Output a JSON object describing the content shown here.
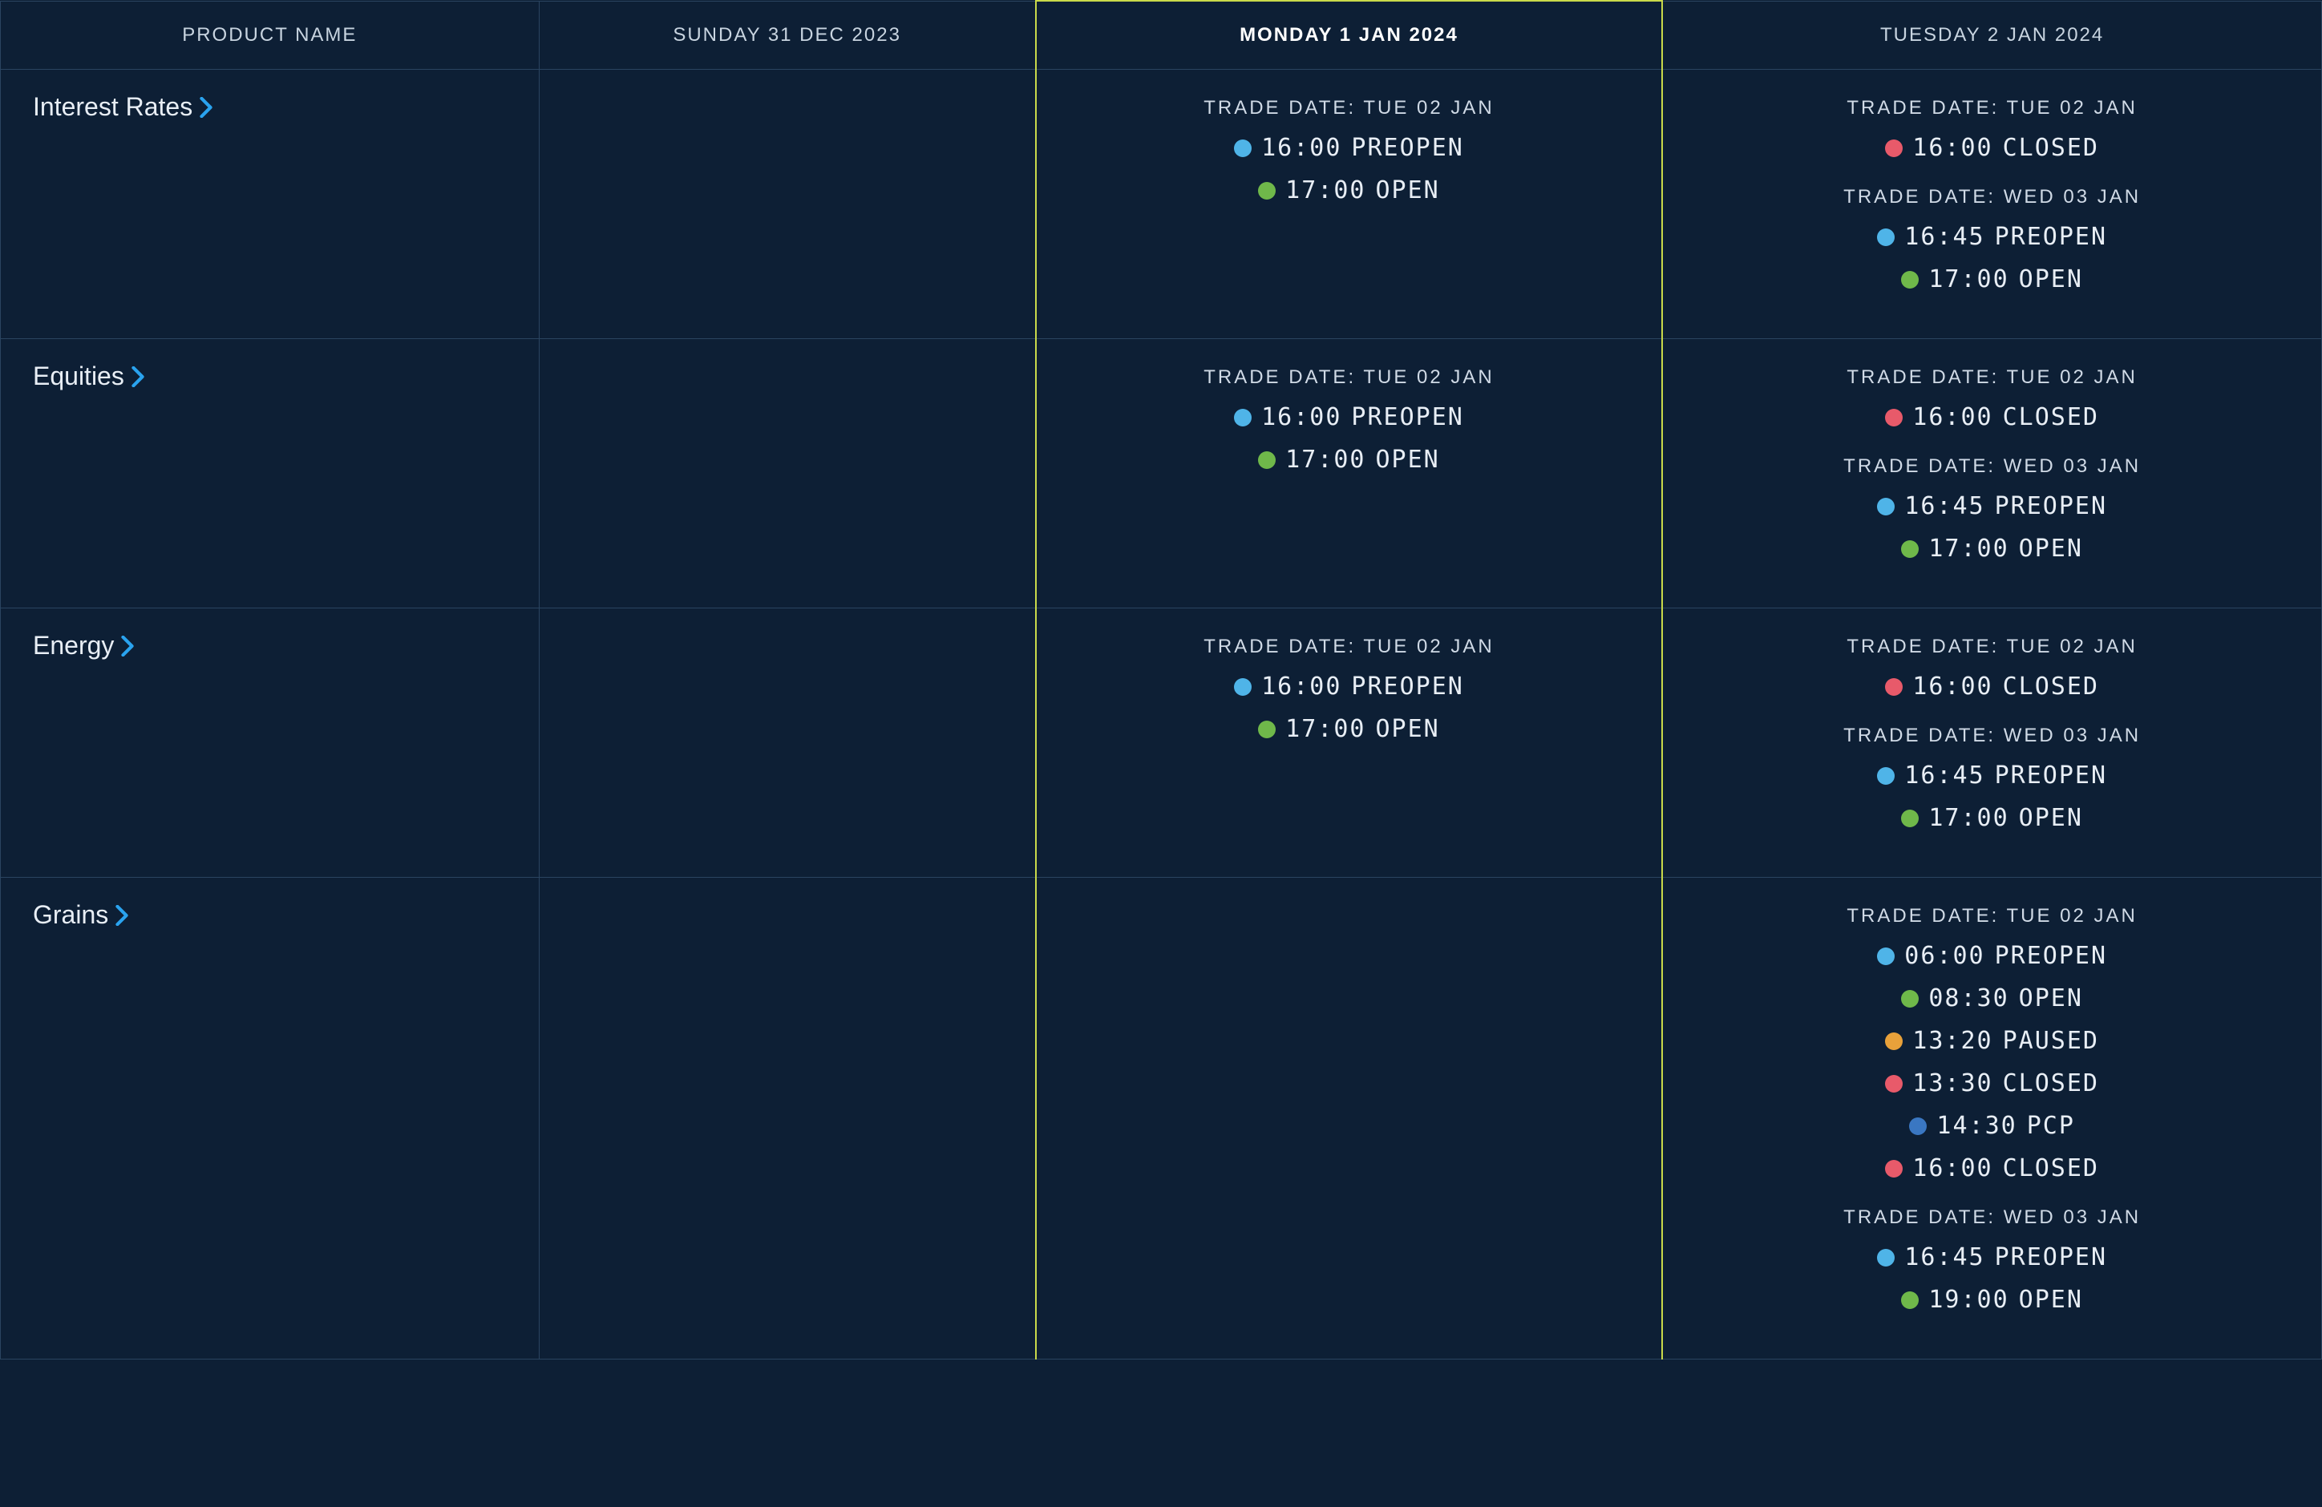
{
  "colors": {
    "background": "#0d1f35",
    "border": "#2a4460",
    "highlight_border": "#c9d94a",
    "text": "#e8eef5",
    "text_muted": "#c8d4e0",
    "chevron": "#2aa3ef",
    "status": {
      "PREOPEN": "#4fb4e8",
      "OPEN": "#6fb84a",
      "CLOSED": "#e85a6a",
      "PAUSED": "#e8a13a",
      "PCP": "#3a77c2"
    }
  },
  "columns": [
    {
      "key": "product",
      "label": "PRODUCT NAME",
      "highlight": false
    },
    {
      "key": "sun",
      "label": "SUNDAY 31 DEC 2023",
      "highlight": false
    },
    {
      "key": "mon",
      "label": "MONDAY 1 JAN 2024",
      "highlight": true
    },
    {
      "key": "tue",
      "label": "TUESDAY 2 JAN 2024",
      "highlight": false
    }
  ],
  "rows": [
    {
      "product": "Interest Rates",
      "cells": {
        "sun": [],
        "mon": [
          {
            "trade_date": "TRADE DATE: TUE 02 JAN",
            "lines": [
              {
                "time": "16:00",
                "status": "PREOPEN"
              },
              {
                "time": "17:00",
                "status": "OPEN"
              }
            ]
          }
        ],
        "tue": [
          {
            "trade_date": "TRADE DATE: TUE 02 JAN",
            "lines": [
              {
                "time": "16:00",
                "status": "CLOSED"
              }
            ]
          },
          {
            "trade_date": "TRADE DATE: WED 03 JAN",
            "lines": [
              {
                "time": "16:45",
                "status": "PREOPEN"
              },
              {
                "time": "17:00",
                "status": "OPEN"
              }
            ]
          }
        ]
      }
    },
    {
      "product": "Equities",
      "cells": {
        "sun": [],
        "mon": [
          {
            "trade_date": "TRADE DATE: TUE 02 JAN",
            "lines": [
              {
                "time": "16:00",
                "status": "PREOPEN"
              },
              {
                "time": "17:00",
                "status": "OPEN"
              }
            ]
          }
        ],
        "tue": [
          {
            "trade_date": "TRADE DATE: TUE 02 JAN",
            "lines": [
              {
                "time": "16:00",
                "status": "CLOSED"
              }
            ]
          },
          {
            "trade_date": "TRADE DATE: WED 03 JAN",
            "lines": [
              {
                "time": "16:45",
                "status": "PREOPEN"
              },
              {
                "time": "17:00",
                "status": "OPEN"
              }
            ]
          }
        ]
      }
    },
    {
      "product": "Energy",
      "cells": {
        "sun": [],
        "mon": [
          {
            "trade_date": "TRADE DATE: TUE 02 JAN",
            "lines": [
              {
                "time": "16:00",
                "status": "PREOPEN"
              },
              {
                "time": "17:00",
                "status": "OPEN"
              }
            ]
          }
        ],
        "tue": [
          {
            "trade_date": "TRADE DATE: TUE 02 JAN",
            "lines": [
              {
                "time": "16:00",
                "status": "CLOSED"
              }
            ]
          },
          {
            "trade_date": "TRADE DATE: WED 03 JAN",
            "lines": [
              {
                "time": "16:45",
                "status": "PREOPEN"
              },
              {
                "time": "17:00",
                "status": "OPEN"
              }
            ]
          }
        ]
      }
    },
    {
      "product": "Grains",
      "cells": {
        "sun": [],
        "mon": [],
        "tue": [
          {
            "trade_date": "TRADE DATE: TUE 02 JAN",
            "lines": [
              {
                "time": "06:00",
                "status": "PREOPEN"
              },
              {
                "time": "08:30",
                "status": "OPEN"
              },
              {
                "time": "13:20",
                "status": "PAUSED"
              },
              {
                "time": "13:30",
                "status": "CLOSED"
              },
              {
                "time": "14:30",
                "status": "PCP"
              },
              {
                "time": "16:00",
                "status": "CLOSED"
              }
            ]
          },
          {
            "trade_date": "TRADE DATE: WED 03 JAN",
            "lines": [
              {
                "time": "16:45",
                "status": "PREOPEN"
              },
              {
                "time": "19:00",
                "status": "OPEN"
              }
            ]
          }
        ]
      }
    }
  ]
}
